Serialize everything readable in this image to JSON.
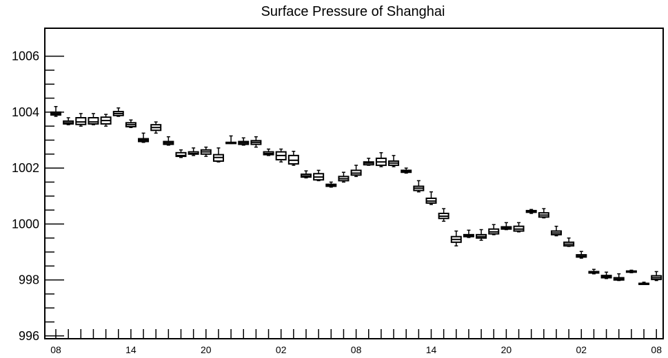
{
  "chart_data": {
    "type": "box",
    "title": "Surface Pressure of Shanghai",
    "xlabel": "",
    "ylabel": "",
    "ylim": [
      995.9,
      1007
    ],
    "y_ticks": [
      996,
      998,
      1000,
      1002,
      1004,
      1006
    ],
    "x_ticks": [
      "08",
      "14",
      "20",
      "02",
      "08",
      "14",
      "20",
      "02",
      "08"
    ],
    "x_tick_index": [
      0,
      6,
      12,
      18,
      24,
      30,
      36,
      42,
      48
    ],
    "grid": false,
    "legend": "none",
    "colors": {
      "box": "#000000",
      "background": "#ffffff"
    },
    "boxes": [
      {
        "i": 0,
        "whisker_low": 1003.85,
        "q1": 1003.9,
        "median": 1003.95,
        "q3": 1004.0,
        "whisker_high": 1004.2
      },
      {
        "i": 1,
        "whisker_low": 1003.55,
        "q1": 1003.58,
        "median": 1003.62,
        "q3": 1003.68,
        "whisker_high": 1003.8
      },
      {
        "i": 2,
        "whisker_low": 1003.5,
        "q1": 1003.56,
        "median": 1003.65,
        "q3": 1003.8,
        "whisker_high": 1003.95
      },
      {
        "i": 3,
        "whisker_low": 1003.55,
        "q1": 1003.58,
        "median": 1003.65,
        "q3": 1003.8,
        "whisker_high": 1003.95
      },
      {
        "i": 4,
        "whisker_low": 1003.5,
        "q1": 1003.58,
        "median": 1003.7,
        "q3": 1003.82,
        "whisker_high": 1003.92
      },
      {
        "i": 5,
        "whisker_low": 1003.85,
        "q1": 1003.88,
        "median": 1003.95,
        "q3": 1004.02,
        "whisker_high": 1004.15
      },
      {
        "i": 6,
        "whisker_low": 1003.45,
        "q1": 1003.48,
        "median": 1003.55,
        "q3": 1003.62,
        "whisker_high": 1003.72
      },
      {
        "i": 7,
        "whisker_low": 1002.92,
        "q1": 1002.95,
        "median": 1003.0,
        "q3": 1003.05,
        "whisker_high": 1003.25
      },
      {
        "i": 8,
        "whisker_low": 1003.25,
        "q1": 1003.35,
        "median": 1003.45,
        "q3": 1003.55,
        "whisker_high": 1003.65
      },
      {
        "i": 9,
        "whisker_low": 1002.82,
        "q1": 1002.85,
        "median": 1002.9,
        "q3": 1002.95,
        "whisker_high": 1003.12
      },
      {
        "i": 10,
        "whisker_low": 1002.38,
        "q1": 1002.42,
        "median": 1002.45,
        "q3": 1002.55,
        "whisker_high": 1002.65
      },
      {
        "i": 11,
        "whisker_low": 1002.45,
        "q1": 1002.5,
        "median": 1002.52,
        "q3": 1002.58,
        "whisker_high": 1002.72
      },
      {
        "i": 12,
        "whisker_low": 1002.42,
        "q1": 1002.5,
        "median": 1002.58,
        "q3": 1002.65,
        "whisker_high": 1002.75
      },
      {
        "i": 13,
        "whisker_low": 1002.22,
        "q1": 1002.25,
        "median": 1002.38,
        "q3": 1002.48,
        "whisker_high": 1002.72
      },
      {
        "i": 14,
        "whisker_low": 1002.88,
        "q1": 1002.88,
        "median": 1002.9,
        "q3": 1002.92,
        "whisker_high": 1003.15
      },
      {
        "i": 15,
        "whisker_low": 1002.82,
        "q1": 1002.85,
        "median": 1002.9,
        "q3": 1002.95,
        "whisker_high": 1003.08
      },
      {
        "i": 16,
        "whisker_low": 1002.75,
        "q1": 1002.85,
        "median": 1002.92,
        "q3": 1002.98,
        "whisker_high": 1003.12
      },
      {
        "i": 17,
        "whisker_low": 1002.45,
        "q1": 1002.48,
        "median": 1002.52,
        "q3": 1002.58,
        "whisker_high": 1002.68
      },
      {
        "i": 18,
        "whisker_low": 1002.22,
        "q1": 1002.3,
        "median": 1002.45,
        "q3": 1002.58,
        "whisker_high": 1002.68
      },
      {
        "i": 19,
        "whisker_low": 1002.1,
        "q1": 1002.15,
        "median": 1002.28,
        "q3": 1002.45,
        "whisker_high": 1002.6
      },
      {
        "i": 20,
        "whisker_low": 1001.65,
        "q1": 1001.68,
        "median": 1001.72,
        "q3": 1001.78,
        "whisker_high": 1001.9
      },
      {
        "i": 21,
        "whisker_low": 1001.55,
        "q1": 1001.58,
        "median": 1001.68,
        "q3": 1001.8,
        "whisker_high": 1001.92
      },
      {
        "i": 22,
        "whisker_low": 1001.32,
        "q1": 1001.35,
        "median": 1001.38,
        "q3": 1001.42,
        "whisker_high": 1001.5
      },
      {
        "i": 23,
        "whisker_low": 1001.5,
        "q1": 1001.55,
        "median": 1001.62,
        "q3": 1001.7,
        "whisker_high": 1001.85
      },
      {
        "i": 24,
        "whisker_low": 1001.7,
        "q1": 1001.75,
        "median": 1001.82,
        "q3": 1001.92,
        "whisker_high": 1002.1
      },
      {
        "i": 25,
        "whisker_low": 1002.1,
        "q1": 1002.12,
        "median": 1002.18,
        "q3": 1002.22,
        "whisker_high": 1002.35
      },
      {
        "i": 26,
        "whisker_low": 1002.05,
        "q1": 1002.1,
        "median": 1002.22,
        "q3": 1002.35,
        "whisker_high": 1002.55
      },
      {
        "i": 27,
        "whisker_low": 1002.05,
        "q1": 1002.1,
        "median": 1002.18,
        "q3": 1002.25,
        "whisker_high": 1002.45
      },
      {
        "i": 28,
        "whisker_low": 1001.82,
        "q1": 1001.85,
        "median": 1001.88,
        "q3": 1001.92,
        "whisker_high": 1002.0
      },
      {
        "i": 29,
        "whisker_low": 1001.15,
        "q1": 1001.2,
        "median": 1001.28,
        "q3": 1001.35,
        "whisker_high": 1001.55
      },
      {
        "i": 30,
        "whisker_low": 1000.7,
        "q1": 1000.75,
        "median": 1000.82,
        "q3": 1000.92,
        "whisker_high": 1001.15
      },
      {
        "i": 31,
        "whisker_low": 1000.1,
        "q1": 1000.2,
        "median": 1000.28,
        "q3": 1000.38,
        "whisker_high": 1000.55
      },
      {
        "i": 32,
        "whisker_low": 999.22,
        "q1": 999.35,
        "median": 999.45,
        "q3": 999.55,
        "whisker_high": 999.75
      },
      {
        "i": 33,
        "whisker_low": 999.52,
        "q1": 999.55,
        "median": 999.58,
        "q3": 999.62,
        "whisker_high": 999.78
      },
      {
        "i": 34,
        "whisker_low": 999.42,
        "q1": 999.5,
        "median": 999.55,
        "q3": 999.62,
        "whisker_high": 999.8
      },
      {
        "i": 35,
        "whisker_low": 999.62,
        "q1": 999.65,
        "median": 999.72,
        "q3": 999.82,
        "whisker_high": 999.98
      },
      {
        "i": 36,
        "whisker_low": 999.8,
        "q1": 999.82,
        "median": 999.85,
        "q3": 999.9,
        "whisker_high": 1000.05
      },
      {
        "i": 37,
        "whisker_low": 999.72,
        "q1": 999.75,
        "median": 999.82,
        "q3": 999.92,
        "whisker_high": 1000.05
      },
      {
        "i": 38,
        "whisker_low": 1000.38,
        "q1": 1000.42,
        "median": 1000.45,
        "q3": 1000.48,
        "whisker_high": 1000.52
      },
      {
        "i": 39,
        "whisker_low": 1000.22,
        "q1": 1000.25,
        "median": 1000.32,
        "q3": 1000.4,
        "whisker_high": 1000.55
      },
      {
        "i": 40,
        "whisker_low": 999.58,
        "q1": 999.62,
        "median": 999.68,
        "q3": 999.75,
        "whisker_high": 999.92
      },
      {
        "i": 41,
        "whisker_low": 999.2,
        "q1": 999.22,
        "median": 999.28,
        "q3": 999.35,
        "whisker_high": 999.5
      },
      {
        "i": 42,
        "whisker_low": 998.78,
        "q1": 998.82,
        "median": 998.85,
        "q3": 998.9,
        "whisker_high": 999.02
      },
      {
        "i": 43,
        "whisker_low": 998.22,
        "q1": 998.25,
        "median": 998.28,
        "q3": 998.3,
        "whisker_high": 998.38
      },
      {
        "i": 44,
        "whisker_low": 998.05,
        "q1": 998.08,
        "median": 998.12,
        "q3": 998.16,
        "whisker_high": 998.28
      },
      {
        "i": 45,
        "whisker_low": 997.98,
        "q1": 998.0,
        "median": 998.03,
        "q3": 998.08,
        "whisker_high": 998.22
      },
      {
        "i": 46,
        "whisker_low": 998.26,
        "q1": 998.28,
        "median": 998.3,
        "q3": 998.32,
        "whisker_high": 998.35
      },
      {
        "i": 47,
        "whisker_low": 997.84,
        "q1": 997.85,
        "median": 997.87,
        "q3": 997.88,
        "whisker_high": 997.92
      },
      {
        "i": 48,
        "whisker_low": 997.98,
        "q1": 998.02,
        "median": 998.08,
        "q3": 998.15,
        "whisker_high": 998.3
      }
    ]
  }
}
